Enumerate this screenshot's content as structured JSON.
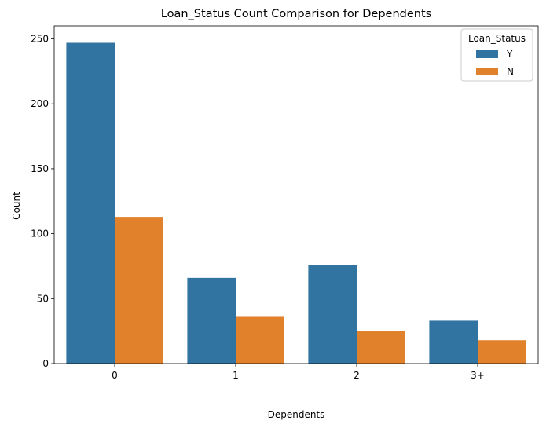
{
  "chart_data": {
    "type": "bar",
    "title": "Loan_Status Count Comparison for Dependents",
    "xlabel": "Dependents",
    "ylabel": "Count",
    "categories": [
      "0",
      "1",
      "2",
      "3+"
    ],
    "series": [
      {
        "name": "Y",
        "values": [
          247,
          66,
          76,
          33
        ],
        "color": "#3274a1"
      },
      {
        "name": "N",
        "values": [
          113,
          36,
          25,
          18
        ],
        "color": "#e1812c"
      }
    ],
    "ylim": [
      0,
      260
    ],
    "yticks": [
      0,
      50,
      100,
      150,
      200,
      250
    ],
    "grid": false,
    "legend": {
      "title": "Loan_Status",
      "placement": "top-right"
    }
  }
}
